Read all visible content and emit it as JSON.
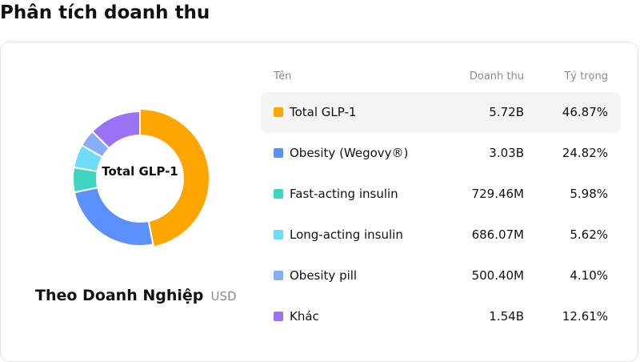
{
  "page": {
    "title": "Phân tích doanh thu"
  },
  "summary": {
    "center_label": "Total GLP-1",
    "subtitle": "Theo Doanh Nghiệp",
    "unit": "USD"
  },
  "table": {
    "headers": {
      "name": "Tên",
      "revenue": "Doanh thu",
      "share": "Tỷ trọng"
    },
    "rows": [
      {
        "name": "Total GLP-1",
        "revenue": "5.72B",
        "share": "46.87%",
        "color": "#FFA500",
        "highlighted": true
      },
      {
        "name": "Obesity (Wegovy®)",
        "revenue": "3.03B",
        "share": "24.82%",
        "color": "#5B8FF9",
        "highlighted": false
      },
      {
        "name": "Fast-acting insulin",
        "revenue": "729.46M",
        "share": "5.98%",
        "color": "#3FD4C0",
        "highlighted": false
      },
      {
        "name": "Long-acting insulin",
        "revenue": "686.07M",
        "share": "5.62%",
        "color": "#6EDCF6",
        "highlighted": false
      },
      {
        "name": "Obesity pill",
        "revenue": "500.40M",
        "share": "4.10%",
        "color": "#86AEF8",
        "highlighted": false
      },
      {
        "name": "Khác",
        "revenue": "1.54B",
        "share": "12.61%",
        "color": "#9B72F5",
        "highlighted": false
      }
    ]
  },
  "chart_data": {
    "type": "pie",
    "donut": true,
    "center_label": "Total GLP-1",
    "categories": [
      "Total GLP-1",
      "Obesity (Wegovy®)",
      "Fast-acting insulin",
      "Long-acting insulin",
      "Obesity pill",
      "Khác"
    ],
    "values": [
      46.87,
      24.82,
      5.98,
      5.62,
      4.1,
      12.61
    ],
    "revenue": [
      "5.72B",
      "3.03B",
      "729.46M",
      "686.07M",
      "500.40M",
      "1.54B"
    ],
    "colors": [
      "#FFA500",
      "#5B8FF9",
      "#3FD4C0",
      "#6EDCF6",
      "#86AEF8",
      "#9B72F5"
    ],
    "highlighted_index": 0,
    "unit": "USD"
  }
}
